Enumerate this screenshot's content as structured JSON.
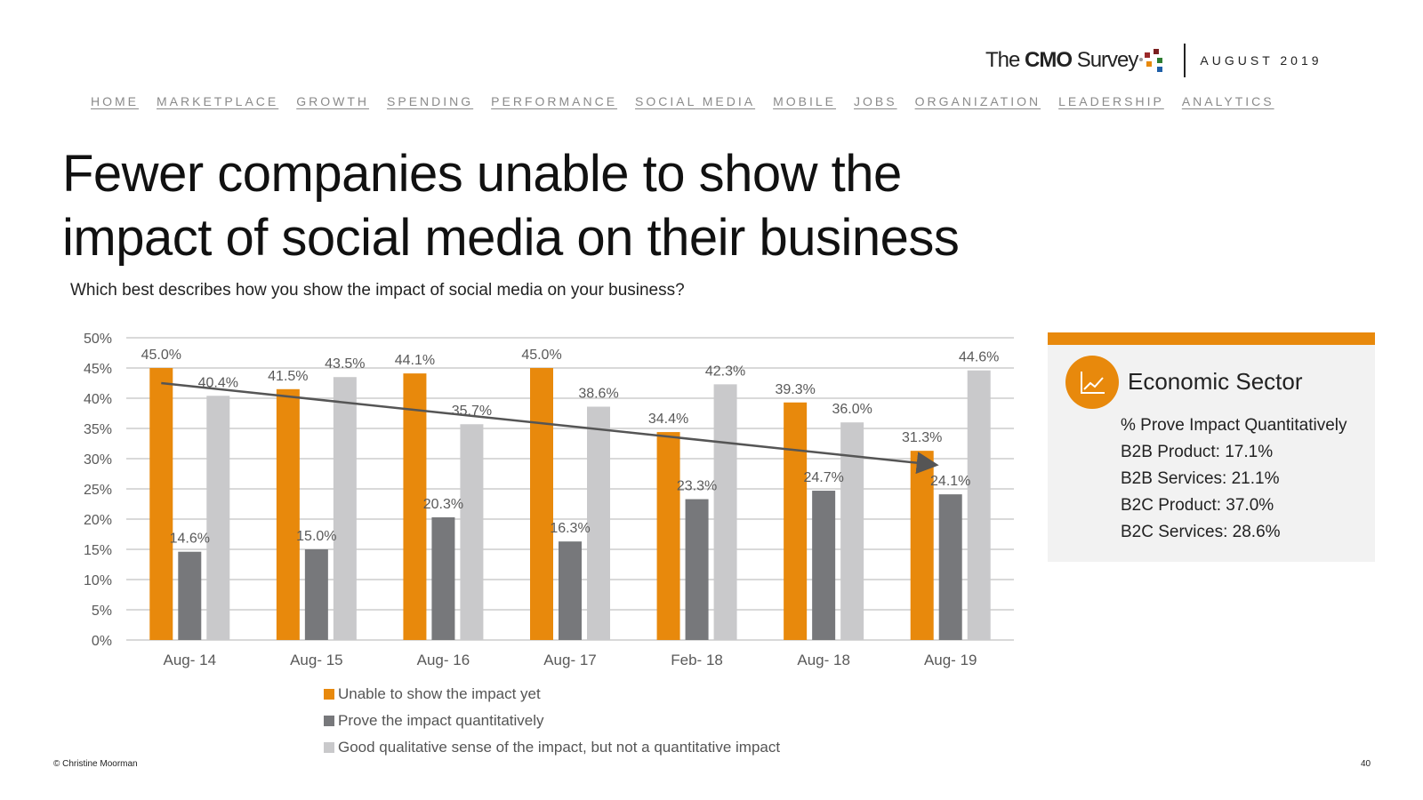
{
  "logo": {
    "text_pre": "The",
    "text_bold": "CMO",
    "text_post": "Survey",
    "date": "AUGUST 2019"
  },
  "nav": [
    "HOME",
    "MARKETPLACE",
    "GROWTH",
    "SPENDING",
    "PERFORMANCE",
    "SOCIAL MEDIA",
    "MOBILE",
    "JOBS",
    "ORGANIZATION",
    "LEADERSHIP",
    "ANALYTICS"
  ],
  "title": "Fewer companies unable to show the impact of social media on their business",
  "question": "Which best describes how you show the impact of social media on your business?",
  "colors": {
    "accent": "#e8890c",
    "dark_gray": "#77787b",
    "light_gray": "#c9c9cb",
    "trend": "#555555"
  },
  "chart_data": {
    "type": "bar",
    "categories": [
      "Aug- 14",
      "Aug- 15",
      "Aug- 16",
      "Aug- 17",
      "Feb- 18",
      "Aug- 18",
      "Aug- 19"
    ],
    "series": [
      {
        "name": "Unable to show the impact yet",
        "color": "#e8890c",
        "values": [
          45.0,
          41.5,
          44.1,
          45.0,
          34.4,
          39.3,
          31.3
        ],
        "labels": [
          "45.0%",
          "41.5%",
          "44.1%",
          "45.0%",
          "34.4%",
          "39.3%",
          "31.3%"
        ]
      },
      {
        "name": "Prove the impact quantitatively",
        "color": "#77787b",
        "values": [
          14.6,
          15.0,
          20.3,
          16.3,
          23.3,
          24.7,
          24.1
        ],
        "labels": [
          "14.6%",
          "15.0%",
          "20.3%",
          "16.3%",
          "23.3%",
          "24.7%",
          "24.1%"
        ]
      },
      {
        "name": "Good qualitative sense of the impact, but not a quantitative impact",
        "color": "#c9c9cb",
        "values": [
          40.4,
          43.5,
          35.7,
          38.6,
          42.3,
          36.0,
          44.6
        ],
        "labels": [
          "40.4%",
          "43.5%",
          "35.7%",
          "38.6%",
          "42.3%",
          "36.0%",
          "44.6%"
        ]
      }
    ],
    "yticks": [
      "0%",
      "5%",
      "10%",
      "15%",
      "20%",
      "25%",
      "30%",
      "35%",
      "40%",
      "45%",
      "50%"
    ],
    "ylim": [
      0,
      50
    ],
    "grid": true,
    "trend_arrow": {
      "series": "Unable to show the impact yet",
      "from": 42.5,
      "to": 29.0
    },
    "legend_position": "bottom"
  },
  "panel": {
    "icon": "line-chart-icon",
    "heading": "Economic Sector",
    "lines": [
      "% Prove Impact Quantitatively",
      "B2B Product: 17.1%",
      "B2B Services: 21.1%",
      "B2C Product: 37.0%",
      "B2C Services: 28.6%"
    ]
  },
  "footer": {
    "copyright": "© Christine Moorman",
    "page": "40"
  }
}
